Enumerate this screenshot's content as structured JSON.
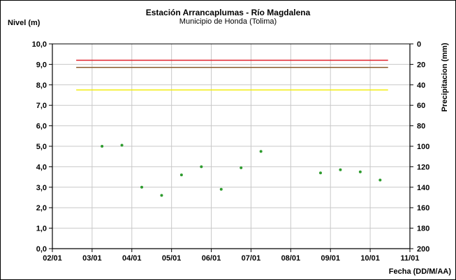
{
  "chart_data": {
    "type": "scatter",
    "title": "Estación Arrancaplumas - Río Magdalena",
    "subtitle": "Municipio de Honda (Tolima)",
    "ylabel": "Nivel (m)",
    "y2label": "Precipitacion (mm)",
    "xlabel": "Fecha (DD/M/AA)",
    "ylim": [
      0,
      10
    ],
    "y2lim": [
      0,
      200
    ],
    "y2_inverted": true,
    "xlim": [
      0,
      9
    ],
    "grid": true,
    "x_ticks": [
      "02/01",
      "03/01",
      "04/01",
      "05/01",
      "06/01",
      "07/01",
      "08/01",
      "09/01",
      "10/01",
      "11/01"
    ],
    "y_ticks": [
      "0,0",
      "1,0",
      "2,0",
      "3,0",
      "4,0",
      "5,0",
      "6,0",
      "7,0",
      "8,0",
      "9,0",
      "10,0"
    ],
    "y2_ticks": [
      "0",
      "20",
      "40",
      "60",
      "80",
      "100",
      "120",
      "140",
      "160",
      "180",
      "200"
    ],
    "thresholds": [
      {
        "value": 9.2,
        "color": "#e0202a"
      },
      {
        "value": 8.85,
        "color": "#8a5a2a"
      },
      {
        "value": 7.75,
        "color": "#f2ee10"
      }
    ],
    "threshold_x_range": [
      0.6,
      8.45
    ],
    "series": [
      {
        "color": "#2e9b2e",
        "x": [
          1.25,
          1.75,
          2.25,
          2.75,
          3.25,
          3.75,
          4.25,
          4.75,
          5.25,
          6.75,
          7.25,
          7.75,
          8.25
        ],
        "y": [
          5.0,
          5.05,
          3.0,
          2.6,
          3.6,
          4.0,
          2.9,
          3.95,
          4.75,
          3.7,
          3.85,
          3.75,
          3.35
        ]
      }
    ]
  }
}
